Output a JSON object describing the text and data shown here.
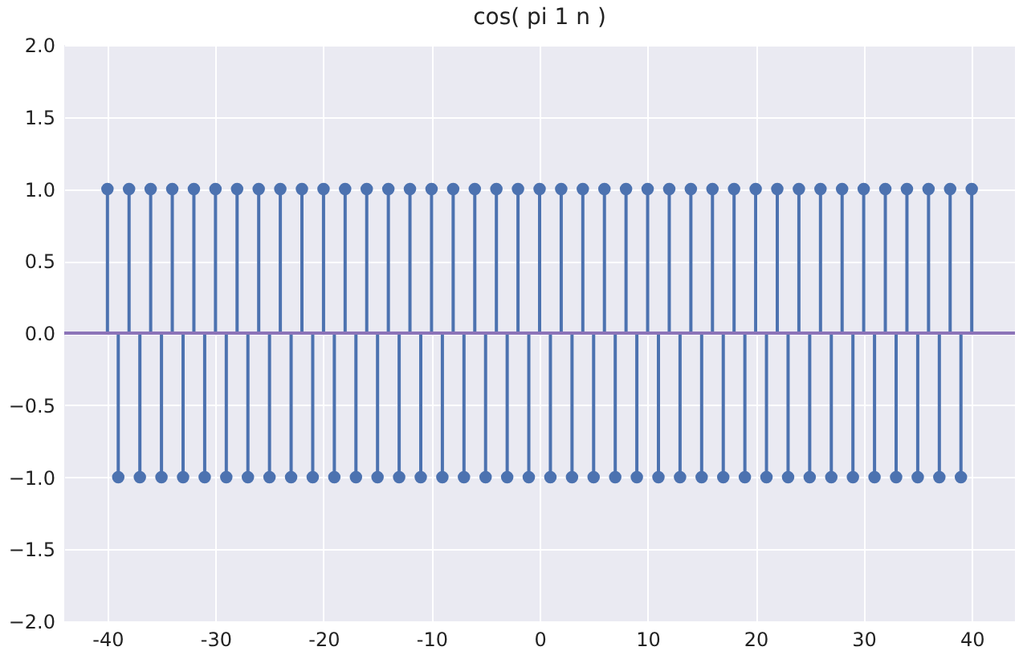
{
  "chart_data": {
    "type": "lollipop",
    "title": "cos( pi 1 n )",
    "x": [
      -40,
      -39,
      -38,
      -37,
      -36,
      -35,
      -34,
      -33,
      -32,
      -31,
      -30,
      -29,
      -28,
      -27,
      -26,
      -25,
      -24,
      -23,
      -22,
      -21,
      -20,
      -19,
      -18,
      -17,
      -16,
      -15,
      -14,
      -13,
      -12,
      -11,
      -10,
      -9,
      -8,
      -7,
      -6,
      -5,
      -4,
      -3,
      -2,
      -1,
      0,
      1,
      2,
      3,
      4,
      5,
      6,
      7,
      8,
      9,
      10,
      11,
      12,
      13,
      14,
      15,
      16,
      17,
      18,
      19,
      20,
      21,
      22,
      23,
      24,
      25,
      26,
      27,
      28,
      29,
      30,
      31,
      32,
      33,
      34,
      35,
      36,
      37,
      38,
      39,
      40
    ],
    "series": [
      {
        "color": "#4c72b0",
        "values": [
          1,
          -1,
          1,
          -1,
          1,
          -1,
          1,
          -1,
          1,
          -1,
          1,
          -1,
          1,
          -1,
          1,
          -1,
          1,
          -1,
          1,
          -1,
          1,
          -1,
          1,
          -1,
          1,
          -1,
          1,
          -1,
          1,
          -1,
          1,
          -1,
          1,
          -1,
          1,
          -1,
          1,
          -1,
          1,
          -1,
          1,
          -1,
          1,
          -1,
          1,
          -1,
          1,
          -1,
          1,
          -1,
          1,
          -1,
          1,
          -1,
          1,
          -1,
          1,
          -1,
          1,
          -1,
          1,
          -1,
          1,
          -1,
          1,
          -1,
          1,
          -1,
          1,
          -1,
          1,
          -1,
          1,
          -1,
          1,
          -1,
          1,
          -1,
          1,
          -1,
          1
        ]
      }
    ],
    "xlim": [
      -44,
      44
    ],
    "xticks": [
      -40,
      -30,
      -20,
      -10,
      0,
      10,
      20,
      30,
      40
    ],
    "ylim": [
      -2,
      2
    ],
    "yticks": [
      {
        "value": -2,
        "label": "−2.0"
      },
      {
        "value": -1.5,
        "label": "−1.5"
      },
      {
        "value": -1,
        "label": "−1.0"
      },
      {
        "value": -0.5,
        "label": "−0.5"
      },
      {
        "value": 0,
        "label": "0.0"
      },
      {
        "value": 0.5,
        "label": "0.5"
      },
      {
        "value": 1,
        "label": "1.0"
      },
      {
        "value": 1.5,
        "label": "1.5"
      },
      {
        "value": 2,
        "label": "2.0"
      }
    ],
    "ref_lines": [
      {
        "axis": "y",
        "value": 0,
        "color": "#8c74b8"
      }
    ],
    "grid": true,
    "marker": "circle"
  }
}
